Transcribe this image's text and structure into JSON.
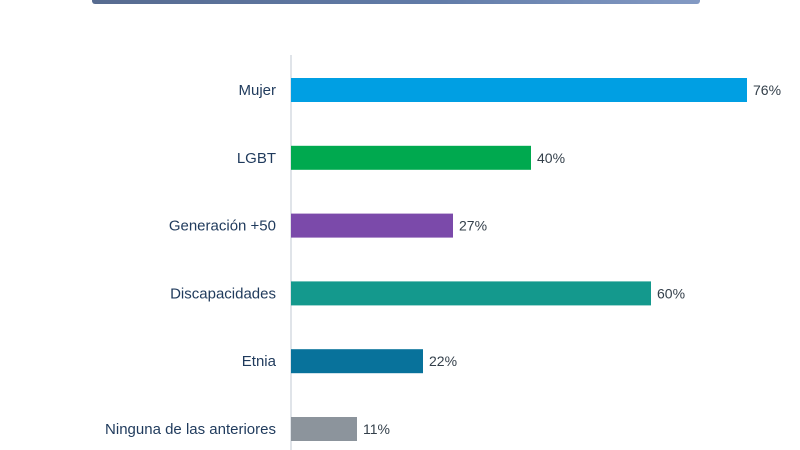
{
  "chart_data": {
    "type": "bar",
    "orientation": "horizontal",
    "categories": [
      "Mujer",
      "LGBT",
      "Generación +50",
      "Discapacidades",
      "Etnia",
      "Ninguna de las anteriores"
    ],
    "values": [
      76,
      40,
      27,
      60,
      22,
      11
    ],
    "value_labels": [
      "76%",
      "40%",
      "27%",
      "60%",
      "22%",
      "11%"
    ],
    "colors": [
      "#009fe3",
      "#00a94f",
      "#7b4aaa",
      "#14998d",
      "#08729b",
      "#8c949c"
    ],
    "xlim": [
      0,
      100
    ],
    "grid": false,
    "legend": "none"
  }
}
